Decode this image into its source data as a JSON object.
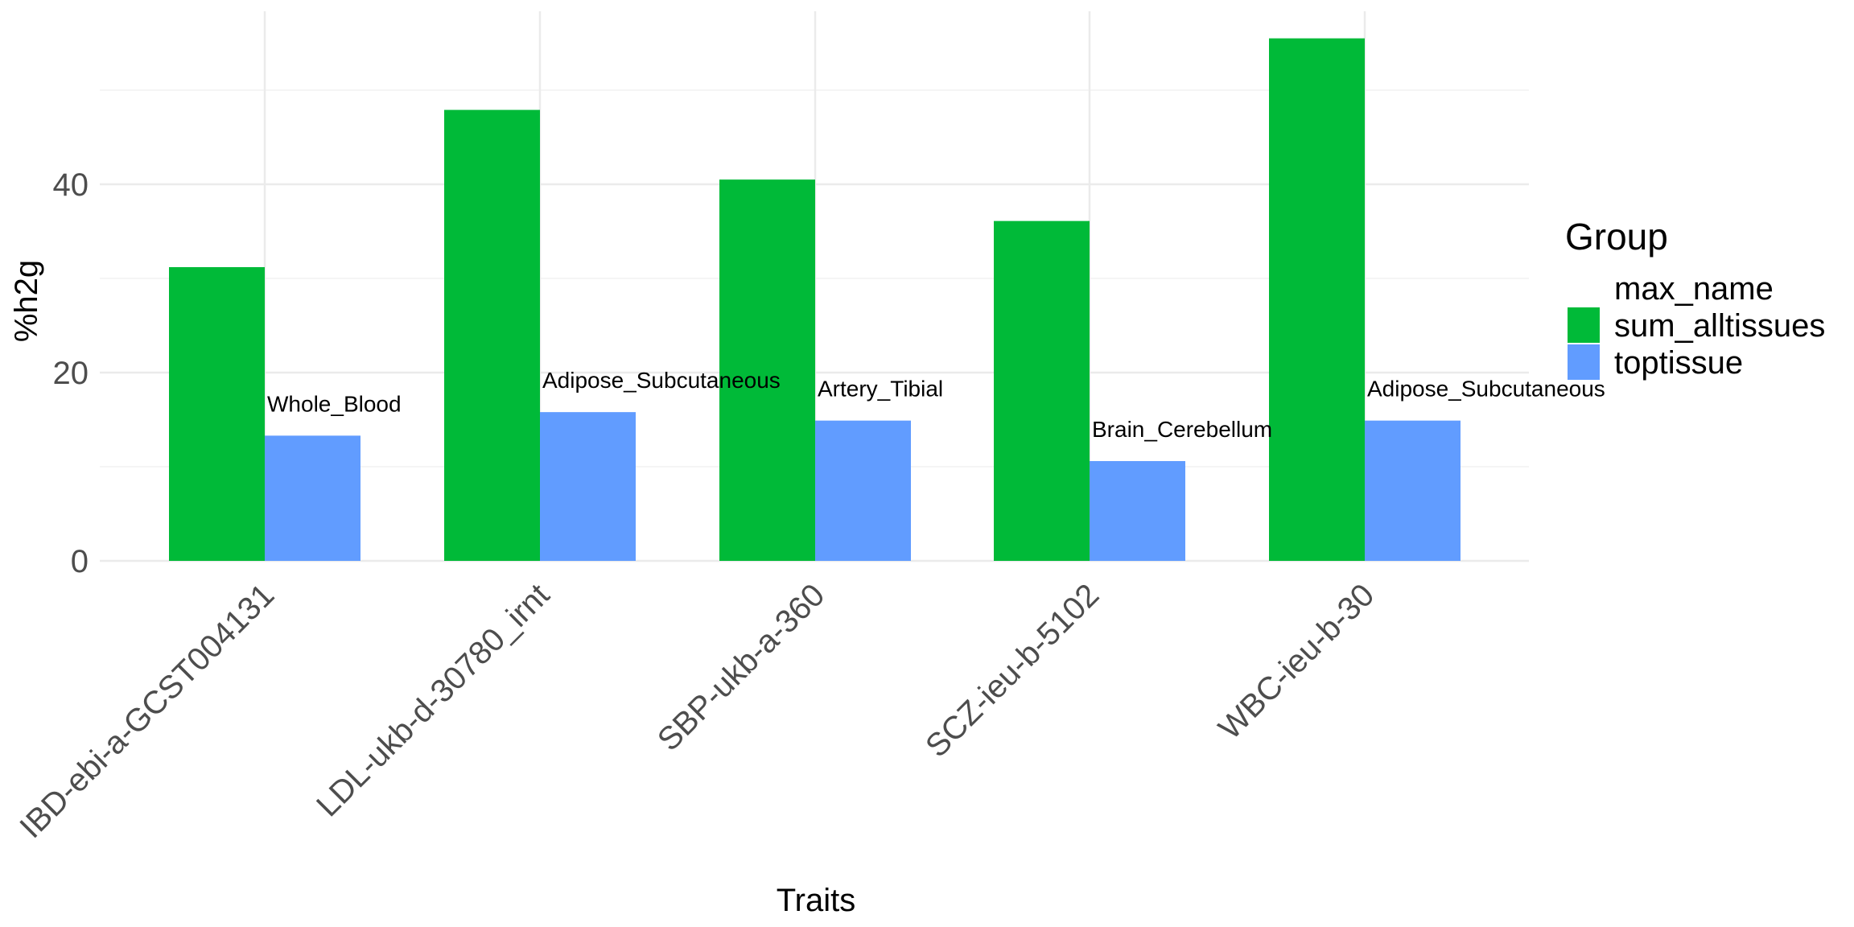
{
  "chart_data": {
    "type": "bar",
    "title": "",
    "xlabel": "Traits",
    "ylabel": "%h2g",
    "categories": [
      "IBD-ebi-a-GCST004131",
      "LDL-ukb-d-30780_irnt",
      "SBP-ukb-a-360",
      "SCZ-ieu-b-5102",
      "WBC-ieu-b-30"
    ],
    "series": [
      {
        "name": "sum_alltissues",
        "color": "#00BA38",
        "values": [
          31.2,
          47.9,
          40.5,
          36.1,
          55.5
        ]
      },
      {
        "name": "toptissue",
        "color": "#619CFF",
        "values": [
          13.3,
          15.8,
          14.9,
          10.6,
          14.9
        ]
      }
    ],
    "bar_labels": [
      "Whole_Blood",
      "Adipose_Subcutaneous",
      "Artery_Tibial",
      "Brain_Cerebellum",
      "Adipose_Subcutaneous"
    ],
    "ylim": [
      0,
      58
    ],
    "yticks": [
      0,
      20,
      40
    ],
    "grid": true,
    "legend": {
      "title": "Group",
      "placement": "right",
      "entries": [
        {
          "label": "max_name",
          "color": null
        },
        {
          "label": "sum_alltissues",
          "color": "#00BA38"
        },
        {
          "label": "toptissue",
          "color": "#619CFF"
        }
      ]
    }
  }
}
